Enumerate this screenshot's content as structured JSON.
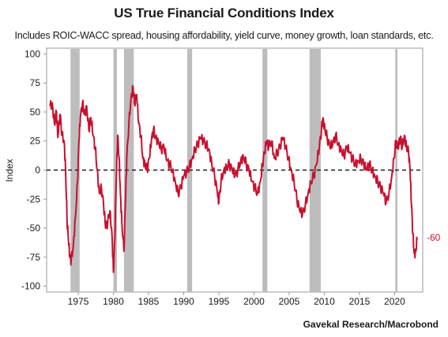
{
  "chart_data": {
    "type": "line",
    "title": "US True Financial Conditions Index",
    "subtitle": "Includes ROIC-WACC spread, housing affordability, yield curve, money growth, loan standards, etc.",
    "ylabel": "Index",
    "xlabel": "",
    "ylim": [
      -105,
      105
    ],
    "xlim": [
      1970.5,
      2024
    ],
    "yticks": [
      100,
      75,
      50,
      25,
      0,
      -25,
      -50,
      -75,
      -100
    ],
    "xticks": [
      1975,
      1980,
      1985,
      1990,
      1995,
      2000,
      2005,
      2010,
      2015,
      2020
    ],
    "zero_line": "dashed",
    "end_label": "-60",
    "source": "Gavekal Research/Macrobond",
    "line_color": "#c8102e",
    "recession_color": "#bdbdbd",
    "recessions": [
      [
        1973.9,
        1975.2
      ],
      [
        1980.0,
        1980.5
      ],
      [
        1981.5,
        1982.9
      ],
      [
        1990.5,
        1991.2
      ],
      [
        2001.2,
        2001.9
      ],
      [
        2007.9,
        2009.5
      ],
      [
        2020.1,
        2020.4
      ]
    ],
    "series": [
      {
        "values": [
          [
            1971.0,
            55
          ],
          [
            1971.3,
            58
          ],
          [
            1971.6,
            40
          ],
          [
            1971.9,
            50
          ],
          [
            1972.1,
            28
          ],
          [
            1972.4,
            48
          ],
          [
            1972.7,
            30
          ],
          [
            1973.0,
            25
          ],
          [
            1973.2,
            0
          ],
          [
            1973.4,
            -42
          ],
          [
            1973.6,
            -60
          ],
          [
            1973.8,
            -75
          ],
          [
            1974.0,
            -78
          ],
          [
            1974.3,
            -65
          ],
          [
            1974.6,
            -40
          ],
          [
            1974.9,
            -10
          ],
          [
            1975.1,
            25
          ],
          [
            1975.3,
            45
          ],
          [
            1975.6,
            58
          ],
          [
            1975.9,
            48
          ],
          [
            1976.2,
            55
          ],
          [
            1976.5,
            35
          ],
          [
            1976.8,
            45
          ],
          [
            1977.1,
            30
          ],
          [
            1977.4,
            20
          ],
          [
            1977.7,
            0
          ],
          [
            1978.0,
            -20
          ],
          [
            1978.3,
            -15
          ],
          [
            1978.6,
            -30
          ],
          [
            1978.9,
            -50
          ],
          [
            1979.2,
            -45
          ],
          [
            1979.5,
            -35
          ],
          [
            1979.8,
            -55
          ],
          [
            1980.0,
            -88
          ],
          [
            1980.2,
            -60
          ],
          [
            1980.4,
            -10
          ],
          [
            1980.6,
            30
          ],
          [
            1980.8,
            12
          ],
          [
            1981.0,
            -20
          ],
          [
            1981.2,
            -45
          ],
          [
            1981.5,
            -70
          ],
          [
            1981.7,
            -30
          ],
          [
            1981.9,
            10
          ],
          [
            1982.2,
            40
          ],
          [
            1982.5,
            62
          ],
          [
            1982.8,
            72
          ],
          [
            1983.0,
            58
          ],
          [
            1983.3,
            65
          ],
          [
            1983.6,
            40
          ],
          [
            1983.9,
            30
          ],
          [
            1984.2,
            10
          ],
          [
            1984.5,
            5
          ],
          [
            1984.8,
            0
          ],
          [
            1985.1,
            10
          ],
          [
            1985.4,
            25
          ],
          [
            1985.7,
            35
          ],
          [
            1986.0,
            28
          ],
          [
            1986.4,
            25
          ],
          [
            1986.8,
            18
          ],
          [
            1987.2,
            20
          ],
          [
            1987.6,
            8
          ],
          [
            1988.0,
            5
          ],
          [
            1988.4,
            0
          ],
          [
            1988.8,
            -10
          ],
          [
            1989.2,
            -20
          ],
          [
            1989.6,
            -15
          ],
          [
            1990.0,
            -5
          ],
          [
            1990.4,
            -2
          ],
          [
            1990.8,
            3
          ],
          [
            1991.2,
            10
          ],
          [
            1991.6,
            18
          ],
          [
            1992.0,
            22
          ],
          [
            1992.4,
            28
          ],
          [
            1992.8,
            25
          ],
          [
            1993.2,
            22
          ],
          [
            1993.6,
            18
          ],
          [
            1994.0,
            5
          ],
          [
            1994.4,
            -5
          ],
          [
            1994.8,
            -20
          ],
          [
            1995.0,
            -28
          ],
          [
            1995.3,
            -10
          ],
          [
            1995.7,
            0
          ],
          [
            1996.1,
            3
          ],
          [
            1996.5,
            5
          ],
          [
            1996.9,
            0
          ],
          [
            1997.3,
            -5
          ],
          [
            1997.7,
            0
          ],
          [
            1998.1,
            8
          ],
          [
            1998.5,
            12
          ],
          [
            1998.9,
            5
          ],
          [
            1999.3,
            0
          ],
          [
            1999.7,
            -10
          ],
          [
            2000.1,
            -15
          ],
          [
            2000.5,
            -20
          ],
          [
            2000.9,
            -10
          ],
          [
            2001.2,
            5
          ],
          [
            2001.5,
            15
          ],
          [
            2001.8,
            25
          ],
          [
            2002.1,
            20
          ],
          [
            2002.5,
            25
          ],
          [
            2002.9,
            10
          ],
          [
            2003.3,
            15
          ],
          [
            2003.7,
            20
          ],
          [
            2004.1,
            28
          ],
          [
            2004.5,
            20
          ],
          [
            2004.9,
            10
          ],
          [
            2005.3,
            0
          ],
          [
            2005.7,
            -10
          ],
          [
            2006.1,
            -25
          ],
          [
            2006.5,
            -35
          ],
          [
            2006.9,
            -38
          ],
          [
            2007.3,
            -30
          ],
          [
            2007.7,
            -20
          ],
          [
            2008.1,
            -10
          ],
          [
            2008.5,
            -5
          ],
          [
            2008.9,
            5
          ],
          [
            2009.3,
            20
          ],
          [
            2009.6,
            35
          ],
          [
            2009.8,
            45
          ],
          [
            2010.1,
            35
          ],
          [
            2010.4,
            28
          ],
          [
            2010.8,
            20
          ],
          [
            2011.2,
            22
          ],
          [
            2011.6,
            30
          ],
          [
            2012.0,
            22
          ],
          [
            2012.4,
            18
          ],
          [
            2012.8,
            12
          ],
          [
            2013.2,
            20
          ],
          [
            2013.6,
            15
          ],
          [
            2014.0,
            10
          ],
          [
            2014.4,
            5
          ],
          [
            2014.8,
            8
          ],
          [
            2015.2,
            10
          ],
          [
            2015.6,
            5
          ],
          [
            2016.0,
            0
          ],
          [
            2016.4,
            5
          ],
          [
            2016.8,
            0
          ],
          [
            2017.2,
            -5
          ],
          [
            2017.6,
            -10
          ],
          [
            2018.0,
            -15
          ],
          [
            2018.4,
            -20
          ],
          [
            2018.8,
            -28
          ],
          [
            2019.2,
            -20
          ],
          [
            2019.6,
            -5
          ],
          [
            2019.9,
            10
          ],
          [
            2020.2,
            25
          ],
          [
            2020.5,
            18
          ],
          [
            2020.8,
            28
          ],
          [
            2021.1,
            20
          ],
          [
            2021.4,
            30
          ],
          [
            2021.7,
            20
          ],
          [
            2022.0,
            15
          ],
          [
            2022.2,
            0
          ],
          [
            2022.4,
            -30
          ],
          [
            2022.6,
            -55
          ],
          [
            2022.8,
            -72
          ],
          [
            2023.0,
            -70
          ],
          [
            2023.2,
            -60
          ]
        ]
      }
    ]
  }
}
